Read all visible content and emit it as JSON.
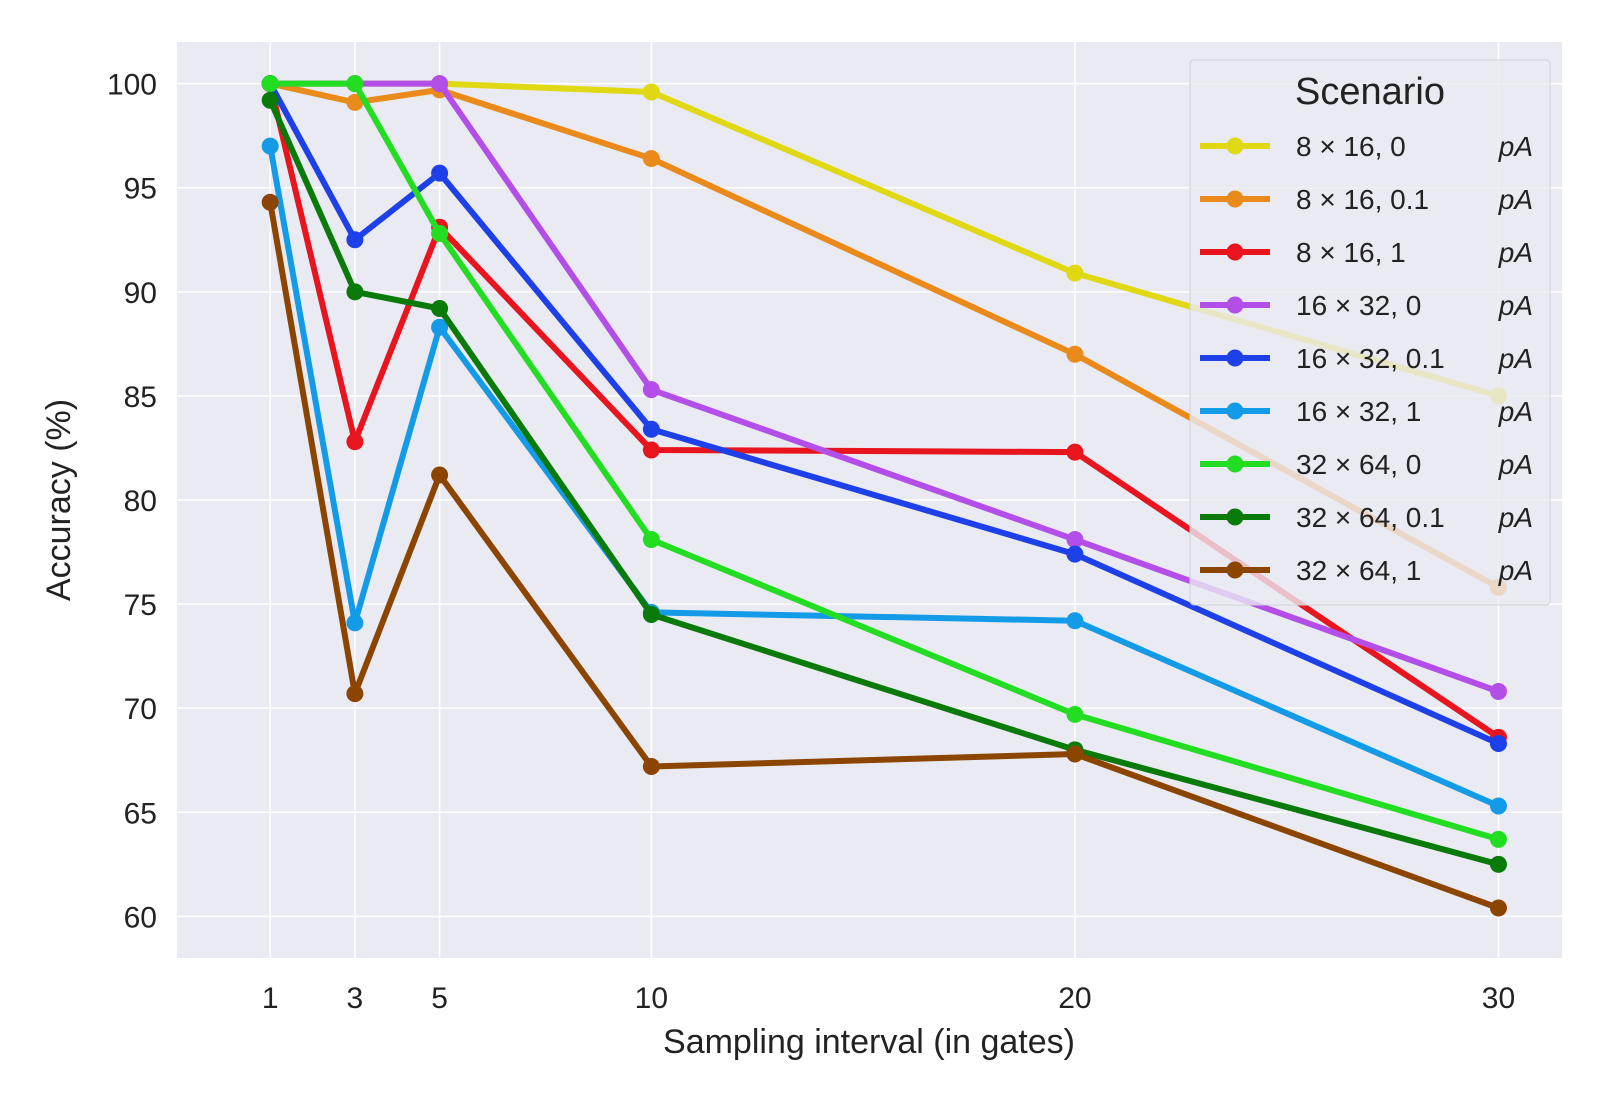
{
  "chart_data": {
    "type": "line",
    "title": "",
    "xlabel": "Sampling interval (in gates)",
    "ylabel": "Accuracy (%)",
    "xlim": [
      -1.2,
      31.5
    ],
    "ylim": [
      58,
      102
    ],
    "x_ticks": [
      1,
      3,
      5,
      10,
      20,
      30
    ],
    "y_ticks": [
      60,
      65,
      70,
      75,
      80,
      85,
      90,
      95,
      100
    ],
    "grid": true,
    "background": "#eaeaf2",
    "legend": {
      "title": "Scenario",
      "placement": "top-right"
    },
    "x": [
      1,
      3,
      5,
      10,
      20,
      30
    ],
    "series": [
      {
        "name": "8 × 16, 0",
        "unit": "pA",
        "color": "#e0d812",
        "values": [
          100,
          100,
          100,
          99.6,
          90.9,
          85.0
        ]
      },
      {
        "name": "8 × 16, 0.1",
        "unit": "pA",
        "color": "#ea8a1a",
        "values": [
          100,
          99.1,
          99.7,
          96.4,
          87.0,
          75.8
        ]
      },
      {
        "name": "8 × 16, 1",
        "unit": "pA",
        "color": "#e8151f",
        "values": [
          100,
          82.8,
          93.1,
          82.4,
          82.3,
          68.6
        ]
      },
      {
        "name": "16 × 32, 0",
        "unit": "pA",
        "color": "#b44ee8",
        "values": [
          100,
          100,
          100,
          85.3,
          78.1,
          70.8
        ]
      },
      {
        "name": "16 × 32, 0.1",
        "unit": "pA",
        "color": "#1e40e8",
        "values": [
          100,
          92.5,
          95.7,
          83.4,
          77.4,
          68.3
        ]
      },
      {
        "name": "16 × 32, 1",
        "unit": "pA",
        "color": "#149be8",
        "values": [
          97.0,
          74.1,
          88.3,
          74.6,
          74.2,
          65.3
        ]
      },
      {
        "name": "32 × 64, 0",
        "unit": "pA",
        "color": "#22dd22",
        "values": [
          100,
          100,
          92.8,
          78.1,
          69.7,
          63.7
        ]
      },
      {
        "name": "32 × 64, 0.1",
        "unit": "pA",
        "color": "#0a7a0a",
        "values": [
          99.2,
          90.0,
          89.2,
          74.5,
          68.0,
          62.5
        ]
      },
      {
        "name": "32 × 64, 1",
        "unit": "pA",
        "color": "#8c4500",
        "values": [
          94.3,
          70.7,
          81.2,
          67.2,
          67.8,
          60.4
        ]
      }
    ]
  }
}
